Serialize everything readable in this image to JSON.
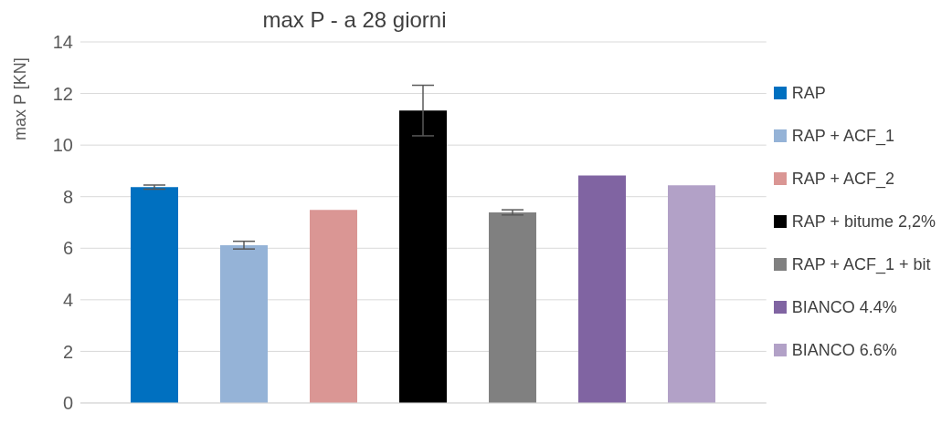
{
  "chart_data": {
    "type": "bar",
    "title": "max P - a 28 giorni",
    "ylabel": "max P [KN]",
    "categories": [
      null
    ],
    "ylim": [
      0,
      14
    ],
    "yticks": [
      0,
      2,
      4,
      6,
      8,
      10,
      12,
      14
    ],
    "grid": "y",
    "legend": "right",
    "series": [
      {
        "name": "RAP",
        "color": "#0070c0",
        "values": [
          8.37
        ],
        "errors": [
          0.08
        ]
      },
      {
        "name": "RAP + ACF_1",
        "color": "#95b3d7",
        "values": [
          6.12
        ],
        "errors": [
          0.15
        ]
      },
      {
        "name": "RAP + ACF_2",
        "color": "#da9694",
        "values": [
          7.49
        ]
      },
      {
        "name": "RAP + bitume 2,2%",
        "color": "#000000",
        "values": [
          11.34
        ],
        "errors": [
          0.98
        ]
      },
      {
        "name": "RAP + ACF_1 + bit",
        "color": "#808080",
        "values": [
          7.39
        ],
        "errors": [
          0.1
        ]
      },
      {
        "name": "BIANCO 4.4%",
        "color": "#8064a2",
        "values": [
          8.82
        ]
      },
      {
        "name": "BIANCO 6.6%",
        "color": "#b2a1c7",
        "values": [
          8.44
        ]
      }
    ]
  }
}
